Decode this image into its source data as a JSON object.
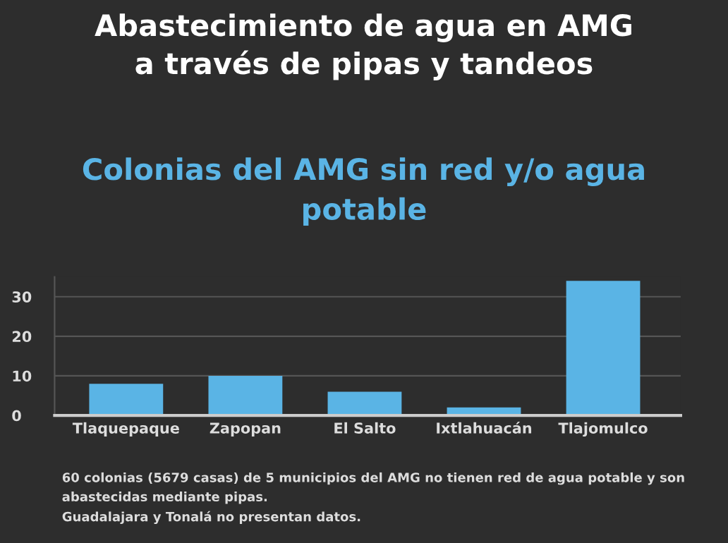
{
  "chart_data": {
    "type": "bar",
    "title": "Abastecimiento de agua en AMG\na través de pipas y tandeos",
    "subtitle": "Colonias del AMG sin red y/o agua\npotable",
    "categories": [
      "Tlaquepaque",
      "Zapopan",
      "El Salto",
      "Ixtlahuacán",
      "Tlajomulco"
    ],
    "values": [
      8,
      10,
      6,
      2,
      34
    ],
    "color": "#5ab4e5",
    "ylim": [
      0,
      35
    ],
    "yticks": [
      0,
      10,
      20,
      30
    ],
    "grid": "y",
    "annotations": [
      "60 colonias (5679 casas) de 5 municipios del AMG no tienen red de agua potable y son abastecidas mediante pipas.\nGuadalajara y Tonalá no presentan datos."
    ]
  }
}
